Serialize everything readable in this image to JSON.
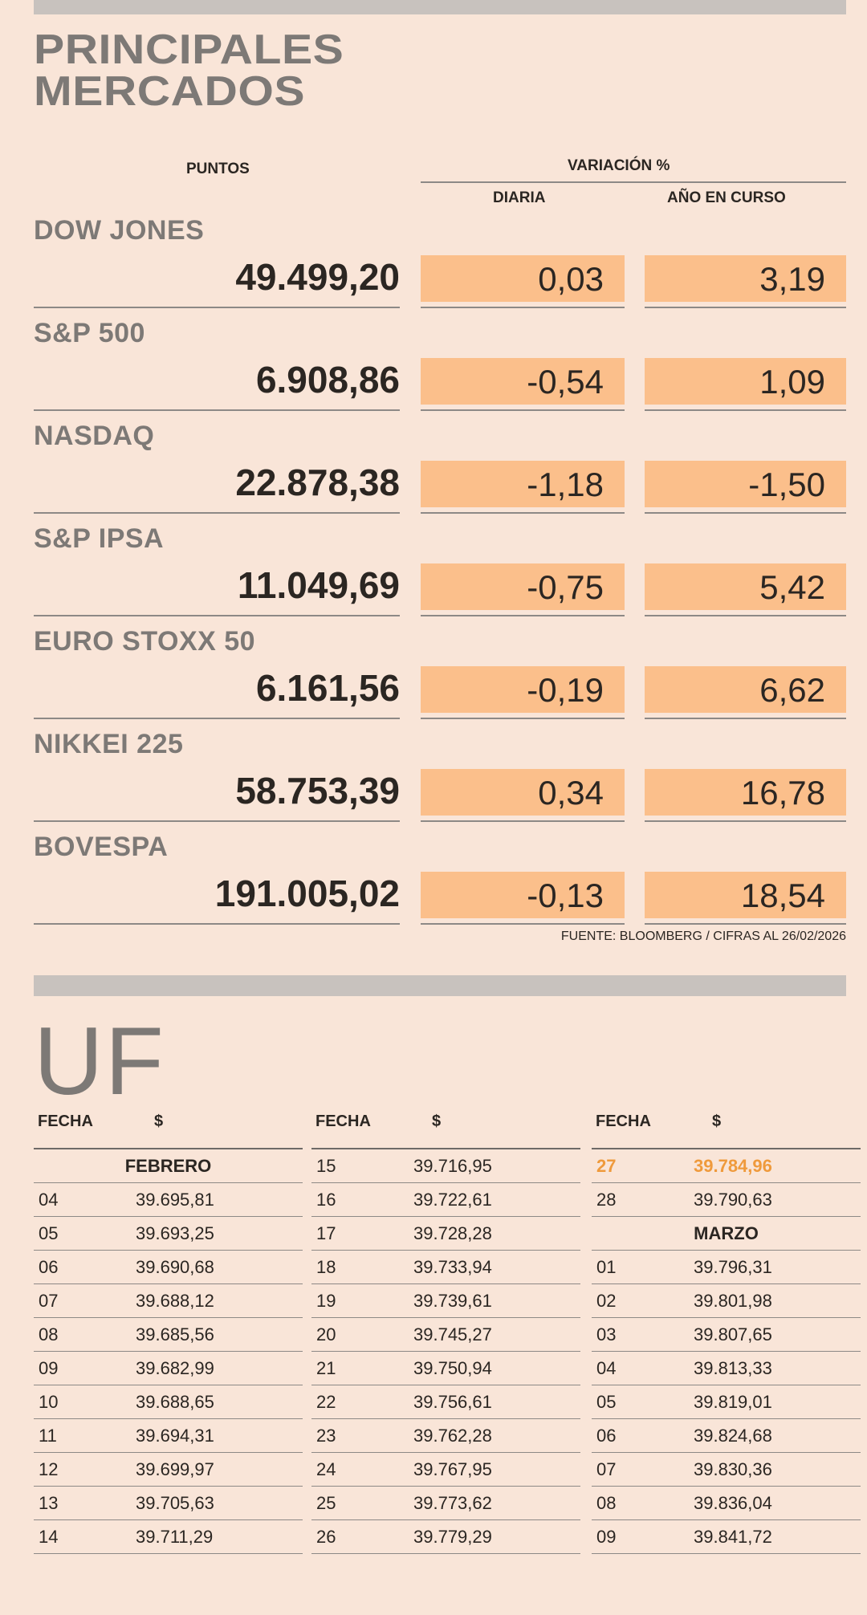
{
  "header": {
    "title": "PRINCIPALES\nMERCADOS",
    "col_points": "PUNTOS",
    "col_variation": "VARIACIÓN %",
    "col_daily": "DIARIA",
    "col_ytd": "AÑO EN CURSO"
  },
  "markets": [
    {
      "name": "DOW JONES",
      "points": "49.499,20",
      "daily": "0,03",
      "ytd": "3,19"
    },
    {
      "name": "S&P 500",
      "points": "6.908,86",
      "daily": "-0,54",
      "ytd": "1,09"
    },
    {
      "name": "NASDAQ",
      "points": "22.878,38",
      "daily": "-1,18",
      "ytd": "-1,50"
    },
    {
      "name": "S&P IPSA",
      "points": "11.049,69",
      "daily": "-0,75",
      "ytd": "5,42"
    },
    {
      "name": "EURO STOXX 50",
      "points": "6.161,56",
      "daily": "-0,19",
      "ytd": "6,62"
    },
    {
      "name": "NIKKEI 225",
      "points": "58.753,39",
      "daily": "0,34",
      "ytd": "16,78"
    },
    {
      "name": "BOVESPA",
      "points": "191.005,02",
      "daily": "-0,13",
      "ytd": "18,54"
    }
  ],
  "source": "FUENTE: BLOOMBERG  / CIFRAS AL 26/02/2026",
  "uf": {
    "title": "UF",
    "col_date": "FECHA",
    "col_value": "$",
    "columns": [
      [
        {
          "month": "FEBRERO"
        },
        {
          "date": "04",
          "value": "39.695,81"
        },
        {
          "date": "05",
          "value": "39.693,25"
        },
        {
          "date": "06",
          "value": "39.690,68"
        },
        {
          "date": "07",
          "value": "39.688,12"
        },
        {
          "date": "08",
          "value": "39.685,56"
        },
        {
          "date": "09",
          "value": "39.682,99"
        },
        {
          "date": "10",
          "value": "39.688,65"
        },
        {
          "date": "11",
          "value": "39.694,31"
        },
        {
          "date": "12",
          "value": "39.699,97"
        },
        {
          "date": "13",
          "value": "39.705,63"
        },
        {
          "date": "14",
          "value": "39.711,29"
        }
      ],
      [
        {
          "date": "15",
          "value": "39.716,95"
        },
        {
          "date": "16",
          "value": "39.722,61"
        },
        {
          "date": "17",
          "value": "39.728,28"
        },
        {
          "date": "18",
          "value": "39.733,94"
        },
        {
          "date": "19",
          "value": "39.739,61"
        },
        {
          "date": "20",
          "value": "39.745,27"
        },
        {
          "date": "21",
          "value": "39.750,94"
        },
        {
          "date": "22",
          "value": "39.756,61"
        },
        {
          "date": "23",
          "value": "39.762,28"
        },
        {
          "date": "24",
          "value": "39.767,95"
        },
        {
          "date": "25",
          "value": "39.773,62"
        },
        {
          "date": "26",
          "value": "39.779,29"
        }
      ],
      [
        {
          "date": "27",
          "value": "39.784,96",
          "highlight": true
        },
        {
          "date": "28",
          "value": "39.790,63"
        },
        {
          "month": "MARZO"
        },
        {
          "date": "01",
          "value": "39.796,31"
        },
        {
          "date": "02",
          "value": "39.801,98"
        },
        {
          "date": "03",
          "value": "39.807,65"
        },
        {
          "date": "04",
          "value": "39.813,33"
        },
        {
          "date": "05",
          "value": "39.819,01"
        },
        {
          "date": "06",
          "value": "39.824,68"
        },
        {
          "date": "07",
          "value": "39.830,36"
        },
        {
          "date": "08",
          "value": "39.836,04"
        },
        {
          "date": "09",
          "value": "39.841,72"
        }
      ]
    ]
  }
}
